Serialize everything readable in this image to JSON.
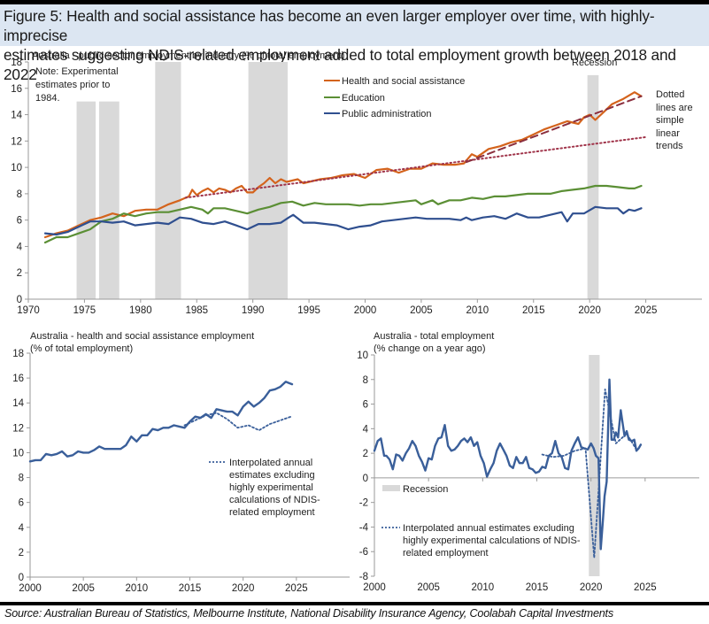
{
  "figure": {
    "title_line1": "Figure 5: Health and social assistance has become an even larger employer over time, with highly-imprecise",
    "title_line2": "estimates suggesting NDIS-related employment added to total employment growth between 2018 and 2022",
    "source": "Source: Australian Bureau of Statistics, Melbourne Institute, National Disability Insurance Agency, Coolabah Capital Investments"
  },
  "colors": {
    "health": "#d4631c",
    "education": "#5b8f35",
    "public_admin": "#2f4f8f",
    "trend_dotted": "#a0344a",
    "trend_dashed": "#8b2f3e",
    "recession": "#d9d9d9",
    "single_series": "#3a5f9a",
    "axis": "#9a9a9a"
  },
  "chart_data": [
    {
      "id": "top",
      "type": "line",
      "title": "Australia - public-sector employment by industry (% of total employment)",
      "xlabel": "",
      "ylabel": "% of total employment",
      "xlim": [
        1970,
        2030
      ],
      "ylim": [
        0,
        18
      ],
      "x_ticks": [
        1970,
        1975,
        1980,
        1985,
        1990,
        1995,
        2000,
        2005,
        2010,
        2015,
        2020,
        2025
      ],
      "y_ticks": [
        0,
        2,
        4,
        6,
        8,
        10,
        12,
        14,
        16,
        18
      ],
      "note": [
        "Note: Experimental",
        "estimates prior to",
        "1984."
      ],
      "recession_label": "Recession",
      "trend_note": [
        "Dotted",
        "lines are",
        "simple",
        "linear",
        "trends"
      ],
      "legend_position": "top-center",
      "shaded_periods": [
        {
          "start": 1974.3,
          "end": 1976.0,
          "top": 15
        },
        {
          "start": 1976.3,
          "end": 1978.1,
          "top": 15
        },
        {
          "start": 1981.3,
          "end": 1983.6,
          "top": 18
        },
        {
          "start": 1989.6,
          "end": 1993.1,
          "top": 18
        },
        {
          "start": 2019.8,
          "end": 2020.8,
          "top": 17
        }
      ],
      "series": [
        {
          "name": "Health and social assistance",
          "key": "health",
          "x": [
            1971.5,
            1972.5,
            1973.5,
            1974.5,
            1975.5,
            1976.5,
            1977.5,
            1978.5,
            1979.5,
            1980.5,
            1981.5,
            1982.5,
            1983.5,
            1984.3,
            1984.6,
            1985,
            1985.5,
            1986,
            1986.5,
            1987,
            1987.5,
            1988,
            1988.5,
            1989,
            1989.5,
            1990,
            1990.5,
            1991,
            1991.5,
            1992,
            1992.5,
            1993,
            1993.5,
            1994,
            1994.5,
            1995,
            1996,
            1997,
            1998,
            1999,
            2000,
            2001,
            2002,
            2003,
            2004,
            2005,
            2006,
            2007,
            2008,
            2008.8,
            2009.5,
            2010,
            2011,
            2012,
            2013,
            2014,
            2015,
            2016,
            2017,
            2018,
            2019,
            2019.5,
            2020,
            2020.5,
            2021,
            2022,
            2023,
            2024,
            2024.6
          ],
          "y": [
            4.7,
            5.0,
            5.2,
            5.6,
            6.0,
            6.2,
            6.5,
            6.3,
            6.7,
            6.8,
            6.8,
            7.2,
            7.5,
            7.8,
            8.3,
            7.9,
            8.2,
            8.4,
            8.1,
            8.4,
            8.3,
            8.1,
            8.4,
            8.6,
            8.1,
            8.1,
            8.5,
            8.8,
            9.2,
            8.8,
            9.1,
            8.9,
            9.0,
            9.1,
            8.8,
            8.9,
            9.1,
            9.2,
            9.4,
            9.5,
            9.2,
            9.8,
            9.9,
            9.6,
            9.9,
            9.9,
            10.3,
            10.2,
            10.2,
            10.3,
            11.0,
            10.8,
            11.4,
            11.6,
            11.9,
            12.1,
            12.5,
            12.9,
            13.2,
            13.5,
            13.3,
            13.8,
            14.0,
            13.6,
            14.0,
            14.8,
            15.2,
            15.7,
            15.4
          ]
        },
        {
          "name": "Education",
          "key": "education",
          "x": [
            1971.5,
            1972.5,
            1973.5,
            1974.5,
            1975.5,
            1976.5,
            1977.5,
            1978.5,
            1979.5,
            1980.5,
            1981.5,
            1982.5,
            1983.5,
            1984.5,
            1985.5,
            1986,
            1986.5,
            1987.5,
            1988.5,
            1989.5,
            1990.5,
            1991.5,
            1992.5,
            1993.5,
            1994.5,
            1995.5,
            1996.5,
            1997.5,
            1998.5,
            1999.5,
            2000.5,
            2001.5,
            2002.5,
            2003.5,
            2004.5,
            2005,
            2006,
            2006.5,
            2007.5,
            2008.5,
            2009.5,
            2010.5,
            2011.5,
            2012.5,
            2013.5,
            2014.5,
            2015.5,
            2016.5,
            2017.5,
            2018.5,
            2019.5,
            2020.5,
            2021.5,
            2022.5,
            2023.5,
            2024,
            2024.6
          ],
          "y": [
            4.3,
            4.7,
            4.7,
            5.0,
            5.3,
            5.9,
            6.1,
            6.5,
            6.3,
            6.5,
            6.6,
            6.6,
            6.8,
            7.0,
            6.8,
            6.5,
            6.9,
            6.9,
            6.7,
            6.5,
            6.8,
            7.0,
            7.3,
            7.4,
            7.1,
            7.3,
            7.2,
            7.2,
            7.2,
            7.1,
            7.2,
            7.2,
            7.3,
            7.4,
            7.5,
            7.2,
            7.5,
            7.2,
            7.5,
            7.5,
            7.7,
            7.6,
            7.8,
            7.8,
            7.9,
            8.0,
            8.0,
            8.0,
            8.2,
            8.3,
            8.4,
            8.6,
            8.6,
            8.5,
            8.4,
            8.4,
            8.6
          ]
        },
        {
          "name": "Public administration",
          "key": "public_admin",
          "x": [
            1971.5,
            1972.5,
            1973.5,
            1974.5,
            1975.5,
            1976.5,
            1977.5,
            1978.5,
            1979.5,
            1980.5,
            1981.5,
            1982.5,
            1983.5,
            1984.5,
            1985.5,
            1986.5,
            1987.5,
            1988.5,
            1989.5,
            1990.5,
            1991.5,
            1992.5,
            1993.2,
            1993.6,
            1994.5,
            1995.5,
            1996.5,
            1997.5,
            1998.5,
            1999.5,
            2000.5,
            2001.5,
            2002.5,
            2003.5,
            2004.5,
            2005.5,
            2006.5,
            2007.5,
            2008.5,
            2009,
            2009.5,
            2010.5,
            2011.5,
            2012.5,
            2013.5,
            2014.5,
            2015.5,
            2016.5,
            2017.5,
            2018,
            2018.5,
            2019.5,
            2020.5,
            2021.5,
            2022.5,
            2023,
            2023.5,
            2024,
            2024.6
          ],
          "y": [
            5.0,
            4.9,
            5.1,
            5.5,
            5.9,
            5.9,
            5.8,
            5.9,
            5.6,
            5.7,
            5.8,
            5.7,
            6.2,
            6.1,
            5.8,
            5.7,
            5.9,
            5.6,
            5.3,
            5.7,
            5.7,
            5.8,
            6.2,
            6.4,
            5.8,
            5.8,
            5.7,
            5.6,
            5.3,
            5.5,
            5.6,
            5.9,
            6.0,
            6.1,
            6.2,
            6.1,
            6.1,
            6.1,
            6.0,
            6.2,
            6.0,
            6.2,
            6.3,
            6.1,
            6.5,
            6.2,
            6.2,
            6.4,
            6.6,
            5.9,
            6.5,
            6.5,
            7.0,
            6.9,
            6.9,
            6.5,
            6.8,
            6.7,
            6.9
          ]
        },
        {
          "name": "Health trend 1984-2009 (dotted)",
          "key": "trend_dotted",
          "style": "dotted",
          "x": [
            1984,
            2025
          ],
          "y": [
            7.7,
            12.3
          ]
        },
        {
          "name": "Health trend 2009-2024 (dashed)",
          "key": "trend_dashed",
          "style": "dashed",
          "x": [
            2009,
            2024.6
          ],
          "y": [
            10.4,
            15.4
          ]
        }
      ]
    },
    {
      "id": "bottom-left",
      "type": "line",
      "title": "Australia - health and social assistance employment",
      "subtitle": "(% of total employment)",
      "xlim": [
        2000,
        2030
      ],
      "ylim": [
        0,
        18
      ],
      "x_ticks": [
        2000,
        2005,
        2010,
        2015,
        2020,
        2025
      ],
      "y_ticks": [
        0,
        2,
        4,
        6,
        8,
        10,
        12,
        14,
        16,
        18
      ],
      "legend": [
        "Interpolated annual",
        "estimates excluding",
        "highly experimental",
        "calculations of NDIS-",
        "related employment"
      ],
      "legend_position": "center-right",
      "series": [
        {
          "name": "Health and social assistance employment",
          "style": "solid",
          "x": [
            2000,
            2000.5,
            2001,
            2001.5,
            2002,
            2002.5,
            2003,
            2003.5,
            2004,
            2004.5,
            2005,
            2005.5,
            2006,
            2006.5,
            2007,
            2007.5,
            2008,
            2008.5,
            2009,
            2009.5,
            2010,
            2010.5,
            2011,
            2011.5,
            2012,
            2012.5,
            2013,
            2013.5,
            2014,
            2014.5,
            2015,
            2015.5,
            2016,
            2016.5,
            2017,
            2017.5,
            2018,
            2018.5,
            2019,
            2019.5,
            2020,
            2020.5,
            2021,
            2021.5,
            2022,
            2022.5,
            2023,
            2023.5,
            2024,
            2024.3,
            2024.6
          ],
          "y": [
            9.3,
            9.4,
            9.4,
            9.9,
            9.8,
            9.9,
            10.1,
            9.7,
            9.8,
            10.1,
            10.0,
            10.0,
            10.2,
            10.5,
            10.3,
            10.3,
            10.3,
            10.3,
            10.6,
            11.3,
            10.9,
            11.4,
            11.4,
            11.9,
            11.8,
            12.0,
            12.0,
            12.2,
            12.1,
            12.0,
            12.5,
            12.9,
            12.8,
            13.1,
            12.8,
            13.5,
            13.4,
            13.3,
            13.3,
            13.0,
            13.7,
            14.1,
            13.7,
            14.0,
            14.4,
            15.0,
            15.1,
            15.3,
            15.7,
            15.6,
            15.5
          ]
        },
        {
          "name": "Interpolated annual estimates excluding highly experimental calculations of NDIS-related employment",
          "style": "dotted",
          "x": [
            2014.5,
            2015.5,
            2016.5,
            2017.5,
            2018.5,
            2019.5,
            2020.5,
            2021.5,
            2022.5,
            2023.5,
            2024.5
          ],
          "y": [
            12.2,
            12.6,
            13.0,
            13.2,
            12.7,
            12.0,
            12.2,
            11.8,
            12.3,
            12.6,
            12.9
          ]
        }
      ]
    },
    {
      "id": "bottom-right",
      "type": "line",
      "title": "Australia - total employment",
      "subtitle": "(% change on a year ago)",
      "xlim": [
        2000,
        2030
      ],
      "ylim": [
        -8,
        10
      ],
      "x_ticks": [
        2000,
        2005,
        2010,
        2015,
        2020,
        2025
      ],
      "y_ticks": [
        -8,
        -6,
        -4,
        -2,
        0,
        2,
        4,
        6,
        8,
        10
      ],
      "recession_label": "Recession",
      "legend": [
        "Interpolated annual estimates excluding",
        "highly experimental calculations of NDIS-",
        "related employment"
      ],
      "legend_position": "bottom-left",
      "shaded_periods": [
        {
          "start": 2019.8,
          "end": 2020.8
        }
      ],
      "series": [
        {
          "name": "Total employment growth",
          "style": "solid",
          "x": [
            2000,
            2000.3,
            2000.6,
            2000.9,
            2001.1,
            2001.4,
            2001.7,
            2002.0,
            2002.3,
            2002.6,
            2002.9,
            2003.2,
            2003.5,
            2003.8,
            2004.1,
            2004.4,
            2004.7,
            2005.0,
            2005.3,
            2005.6,
            2005.9,
            2006.2,
            2006.5,
            2006.8,
            2007.1,
            2007.4,
            2007.7,
            2008.0,
            2008.3,
            2008.6,
            2008.9,
            2009.2,
            2009.5,
            2009.8,
            2010.1,
            2010.4,
            2010.7,
            2011.0,
            2011.3,
            2011.6,
            2011.9,
            2012.2,
            2012.5,
            2012.8,
            2013.1,
            2013.4,
            2013.7,
            2014.0,
            2014.3,
            2014.6,
            2014.9,
            2015.2,
            2015.5,
            2015.8,
            2016.1,
            2016.4,
            2016.7,
            2017.0,
            2017.3,
            2017.6,
            2017.9,
            2018.2,
            2018.5,
            2018.8,
            2019.1,
            2019.4,
            2019.7,
            2020.0,
            2020.25,
            2020.45,
            2020.7,
            2020.9,
            2021.1,
            2021.25,
            2021.45,
            2021.7,
            2021.9,
            2022.1,
            2022.3,
            2022.5,
            2022.75,
            2022.9,
            2023.1,
            2023.3,
            2023.5,
            2023.8,
            2024.0,
            2024.2,
            2024.4,
            2024.6
          ],
          "y": [
            2.2,
            3.0,
            3.2,
            1.8,
            1.8,
            1.5,
            0.7,
            1.9,
            1.8,
            1.4,
            2.0,
            2.4,
            3.0,
            2.6,
            1.8,
            1.3,
            0.6,
            1.6,
            1.5,
            2.6,
            3.2,
            3.3,
            4.3,
            2.6,
            2.2,
            2.3,
            2.6,
            3.0,
            3.2,
            2.9,
            3.3,
            2.6,
            2.9,
            1.8,
            1.2,
            0.1,
            0.7,
            1.2,
            2.2,
            2.8,
            2.3,
            1.8,
            1.0,
            0.8,
            1.7,
            1.2,
            1.2,
            1.7,
            0.8,
            0.7,
            0.4,
            0.5,
            0.9,
            0.8,
            1.8,
            2.0,
            3.0,
            2.0,
            1.7,
            0.8,
            0.7,
            2.2,
            2.8,
            3.3,
            2.5,
            2.4,
            2.3,
            2.8,
            2.4,
            1.8,
            1.6,
            -5.8,
            -3.5,
            -1.5,
            -0.3,
            8.0,
            3.1,
            3.1,
            3.7,
            3.3,
            5.5,
            4.6,
            3.4,
            3.8,
            3.1,
            3.0,
            3.1,
            2.2,
            2.4,
            2.7
          ]
        },
        {
          "name": "Interpolated annual estimates excluding highly experimental calculations of NDIS-related employment",
          "style": "dotted",
          "x": [
            2015.5,
            2016.5,
            2017.5,
            2018.5,
            2019.5,
            2020.3,
            2021.3,
            2022.3,
            2023.3,
            2024.2
          ],
          "y": [
            1.9,
            1.7,
            1.8,
            2.2,
            2.4,
            -6.5,
            7.2,
            2.8,
            3.6,
            2.3
          ]
        }
      ]
    }
  ]
}
